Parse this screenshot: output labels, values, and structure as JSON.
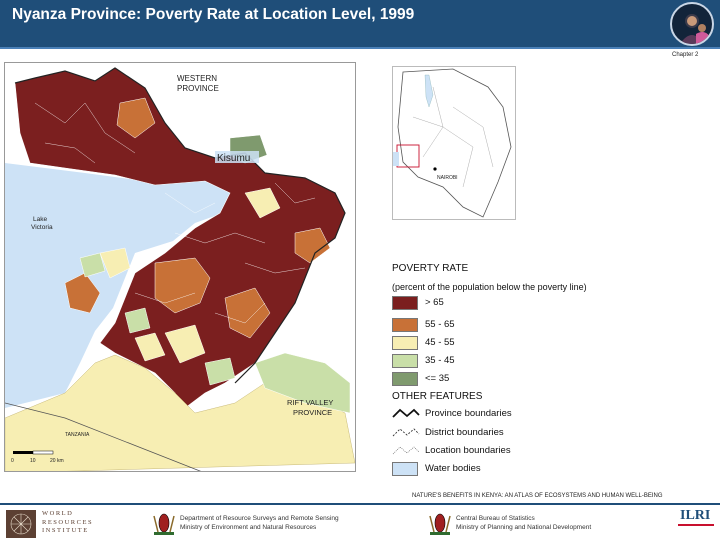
{
  "header": {
    "title": "Nyanza Province: Poverty Rate at Location Level, 1999",
    "chapter": "Chapter 2"
  },
  "map": {
    "labels": {
      "western_province": [
        "WESTERN",
        "PROVINCE"
      ],
      "kisumu": "Kisumu",
      "lake_victoria": [
        "Lake",
        "Victoria"
      ],
      "rift_valley": [
        "RIFT VALLEY",
        "PROVINCE"
      ],
      "tanzania": "TANZANIA",
      "scale": [
        "0",
        "10",
        "20 km"
      ]
    },
    "inset": {
      "nairobi": "NAIROBI"
    },
    "colors": {
      "very_high": "#7b1f1f",
      "high": "#c87137",
      "medium": "#f7eeb3",
      "low": "#c9dfa8",
      "very_low": "#7f9a6e",
      "water": "#cde2f6"
    }
  },
  "legend": {
    "title": "POVERTY RATE",
    "subtitle": "(percent of the population below the poverty line)",
    "classes": [
      {
        "label": "> 65",
        "color": "#7b1f1f"
      },
      {
        "label": "55 - 65",
        "color": "#c87137"
      },
      {
        "label": "45 - 55",
        "color": "#f7eeb3"
      },
      {
        "label": "35 - 45",
        "color": "#c9dfa8"
      },
      {
        "label": "<= 35",
        "color": "#7f9a6e"
      }
    ],
    "other_title": "OTHER FEATURES",
    "features": [
      {
        "label": "Province boundaries",
        "icon": "thick-line-icon"
      },
      {
        "label": "District boundaries",
        "icon": "dashed-line-icon"
      },
      {
        "label": "Location boundaries",
        "icon": "thin-line-icon"
      },
      {
        "label": "Water bodies",
        "icon": "water-swatch",
        "color": "#cde2f6"
      }
    ]
  },
  "footer": {
    "citation": "NATURE'S BENEFITS IN KENYA: AN ATLAS OF ECOSYSTEMS AND HUMAN WELL-BEING",
    "wri": [
      "WORLD",
      "RESOURCES",
      "INSTITUTE"
    ],
    "dept1": [
      "Department of Resource Surveys and Remote Sensing",
      "Ministry of Environment and Natural Resources"
    ],
    "dept2": [
      "Central Bureau of Statistics",
      "Ministry of Planning and National Development"
    ],
    "ilri": "ILRI"
  }
}
